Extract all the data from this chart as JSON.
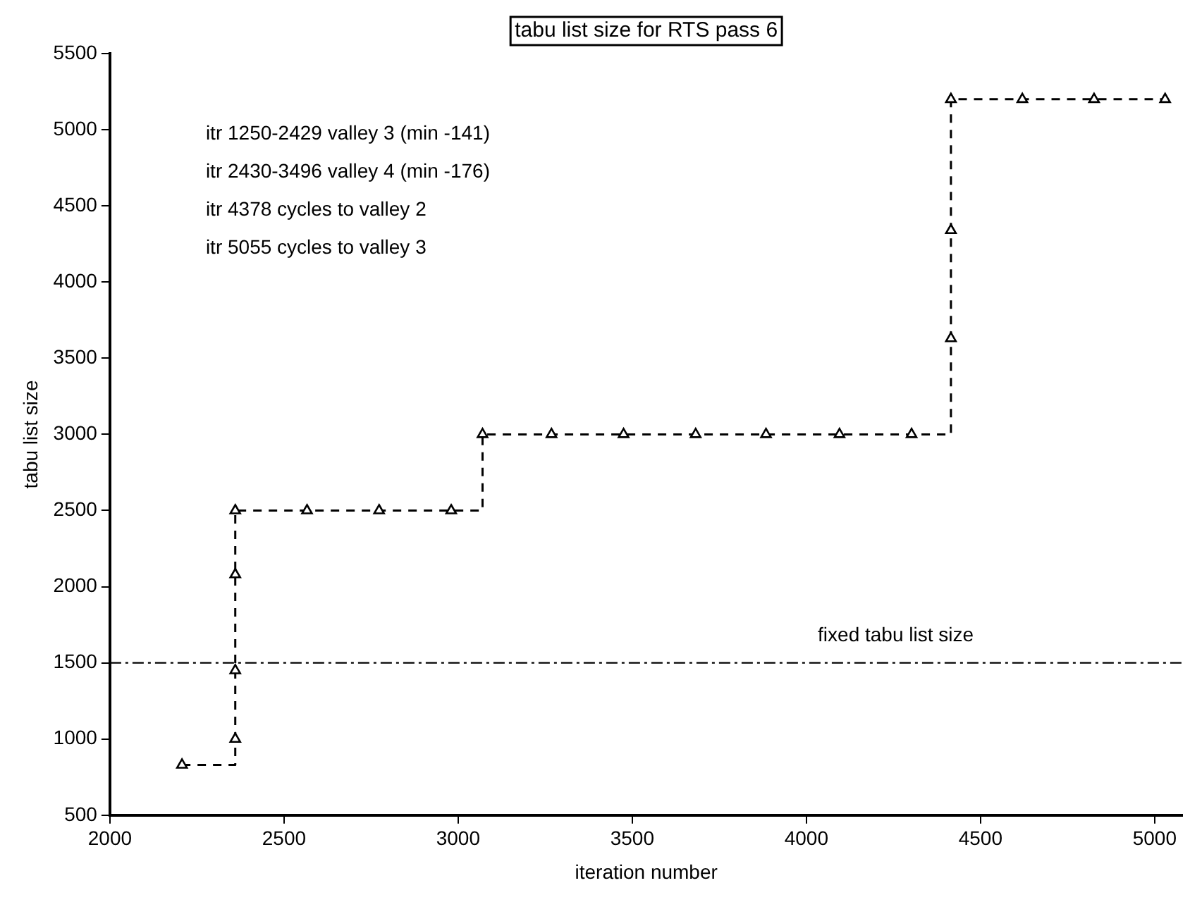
{
  "chart_data": {
    "type": "step",
    "title": "tabu list size for RTS pass 6",
    "xlabel": "iteration number",
    "ylabel": "tabu list size",
    "x": [
      2207,
      2360,
      2360,
      2360,
      2360,
      2566,
      2773,
      2980,
      3070,
      3268,
      3475,
      3682,
      3884,
      4095,
      4302,
      4415,
      4415,
      4415,
      4620,
      4826,
      5030
    ],
    "series": [
      {
        "color": "#000000",
        "values": [
          830,
          1000,
          1450,
          2080,
          2500,
          2500,
          2500,
          2500,
          3000,
          3000,
          3000,
          3000,
          3000,
          3000,
          3000,
          3630,
          4340,
          5200,
          5200,
          5200,
          5200
        ]
      }
    ],
    "marker": "triangle",
    "line_style": "dashed",
    "grid": false,
    "legend": false,
    "xlim": [
      2000,
      5080
    ],
    "xticks": [
      2000,
      2500,
      3000,
      3500,
      4000,
      4500,
      5000
    ],
    "ylim": [
      500,
      5500
    ],
    "yticks": [
      500,
      1000,
      1500,
      2000,
      2500,
      3000,
      3500,
      4000,
      4500,
      5000,
      5500
    ],
    "ref_lines": [
      {
        "axis": "y",
        "value": 1500,
        "label": "fixed tabu list size",
        "line_style": "dashdot",
        "color": "#000000"
      }
    ],
    "annotations": [
      "itr 1250-2429 valley 3 (min -141)",
      "itr 2430-3496 valley 4 (min -176)",
      "itr 4378 cycles to valley 2",
      "itr 5055 cycles to valley 3"
    ]
  }
}
